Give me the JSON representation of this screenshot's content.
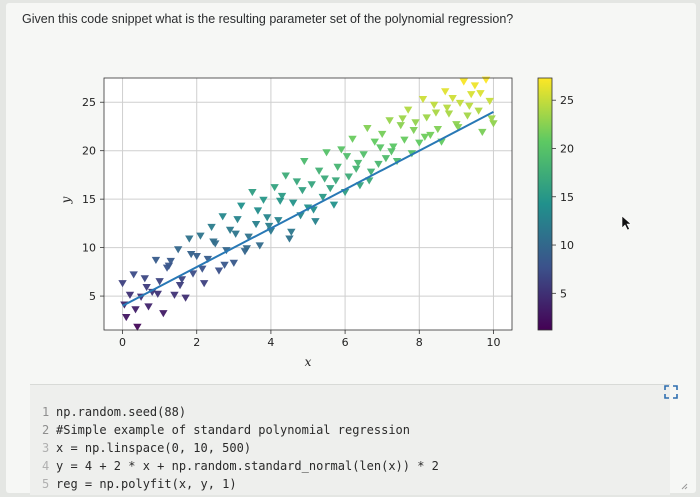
{
  "question": {
    "text": "Given this code snippet what is the resulting parameter set of the polynomial regression?"
  },
  "code": {
    "lines": [
      {
        "n": "1",
        "text": "np.random.seed(88)"
      },
      {
        "n": "2",
        "text": "#Simple example of standard polynomial regression"
      },
      {
        "n": "3",
        "text": "x = np.linspace(0, 10, 500)"
      },
      {
        "n": "4",
        "text": "y = 4 + 2 * x + np.random.standard_normal(len(x)) * 2"
      },
      {
        "n": "5",
        "text": "reg = np.polyfit(x, y, 1)"
      }
    ]
  },
  "icons": {
    "expand": "expand-icon",
    "cursor": "mouse-cursor-icon",
    "resize": "resize-grip-icon"
  },
  "chart_data": {
    "type": "scatter",
    "title": "",
    "xlabel": "x",
    "ylabel": "y",
    "xlim": [
      -0.5,
      10.5
    ],
    "ylim": [
      1.5,
      27.5
    ],
    "xticks": [
      "0",
      "2",
      "4",
      "6",
      "8",
      "10"
    ],
    "xtick_values": [
      0,
      2,
      4,
      6,
      8,
      10
    ],
    "yticks": [
      "5",
      "10",
      "15",
      "20",
      "25"
    ],
    "ytick_values": [
      5,
      10,
      15,
      20,
      25
    ],
    "grid": true,
    "marker": "triangle-down",
    "colormap": "viridis",
    "colorbar": {
      "range": [
        1.2,
        27.3
      ],
      "ticks": [
        "5",
        "10",
        "15",
        "20",
        "25"
      ],
      "tick_values": [
        5,
        10,
        15,
        20,
        25
      ],
      "colors": [
        "#440154",
        "#3b528b",
        "#21918c",
        "#5ec962",
        "#fde725"
      ]
    },
    "series": [
      {
        "kind": "fit-line",
        "color": "#2878b5",
        "x": [
          0,
          10
        ],
        "y": [
          4.0,
          24.0
        ]
      },
      {
        "kind": "points",
        "x": [
          0.0,
          0.1,
          0.2,
          0.3,
          0.4,
          0.5,
          0.6,
          0.7,
          0.8,
          0.9,
          1.0,
          1.1,
          1.2,
          1.3,
          1.4,
          1.5,
          1.6,
          1.7,
          1.8,
          1.9,
          2.0,
          2.1,
          2.2,
          2.3,
          2.4,
          2.5,
          2.6,
          2.7,
          2.8,
          2.9,
          3.0,
          3.1,
          3.2,
          3.3,
          3.4,
          3.5,
          3.6,
          3.7,
          3.8,
          3.9,
          4.0,
          4.1,
          4.2,
          4.3,
          4.4,
          4.5,
          4.6,
          4.7,
          4.8,
          4.9,
          5.0,
          5.1,
          5.2,
          5.3,
          5.4,
          5.5,
          5.6,
          5.7,
          5.8,
          5.9,
          6.0,
          6.1,
          6.2,
          6.3,
          6.4,
          6.5,
          6.6,
          6.7,
          6.8,
          6.9,
          7.0,
          7.1,
          7.2,
          7.3,
          7.4,
          7.5,
          7.6,
          7.7,
          7.8,
          7.9,
          8.0,
          8.1,
          8.2,
          8.3,
          8.4,
          8.5,
          8.6,
          8.7,
          8.8,
          8.9,
          9.0,
          9.1,
          9.2,
          9.3,
          9.4,
          9.5,
          9.6,
          9.7,
          9.8,
          9.9,
          10.0,
          0.05,
          0.35,
          0.65,
          0.95,
          1.25,
          1.55,
          1.85,
          2.15,
          2.45,
          2.75,
          3.05,
          3.35,
          3.65,
          3.95,
          4.25,
          4.55,
          4.85,
          5.15,
          5.45,
          5.75,
          6.05,
          6.35,
          6.65,
          6.95,
          7.25,
          7.55,
          7.85,
          8.15,
          8.45,
          8.75,
          9.05,
          9.35,
          9.65,
          9.95
        ],
        "y": [
          6.3,
          2.8,
          5.1,
          7.2,
          1.8,
          4.9,
          6.8,
          3.9,
          5.4,
          8.7,
          6.5,
          3.2,
          7.9,
          8.6,
          5.1,
          9.8,
          6.7,
          4.8,
          10.9,
          7.3,
          9.1,
          11.2,
          6.3,
          8.8,
          12.1,
          10.4,
          7.6,
          13.2,
          9.7,
          11.8,
          8.4,
          12.9,
          14.3,
          9.6,
          11.1,
          15.7,
          12.4,
          10.2,
          14.9,
          13.1,
          11.7,
          16.2,
          12.8,
          15.3,
          17.4,
          10.9,
          14.6,
          16.8,
          13.3,
          18.9,
          14.1,
          16.5,
          12.7,
          17.9,
          15.2,
          19.8,
          16.1,
          14.4,
          18.3,
          20.1,
          15.7,
          17.3,
          21.2,
          18.1,
          16.4,
          19.6,
          22.3,
          17.8,
          20.9,
          18.6,
          21.7,
          19.2,
          23.1,
          20.4,
          18.9,
          22.6,
          21.1,
          24.2,
          19.7,
          22.9,
          20.8,
          25.3,
          23.4,
          21.6,
          24.7,
          22.2,
          20.9,
          26.1,
          23.8,
          25.4,
          22.7,
          24.9,
          27.1,
          23.6,
          25.8,
          26.7,
          24.1,
          21.9,
          27.3,
          25.1,
          22.8,
          4.1,
          3.6,
          5.9,
          5.2,
          8.1,
          6.1,
          9.3,
          7.8,
          10.6,
          8.2,
          11.4,
          9.9,
          13.8,
          12.2,
          14.8,
          11.6,
          15.9,
          13.9,
          17.1,
          16.9,
          19.4,
          18.7,
          16.9,
          20.3,
          19.9,
          23.3,
          22.1,
          21.4,
          23.9,
          24.4,
          22.4,
          24.6,
          25.9,
          23.3
        ]
      }
    ]
  }
}
